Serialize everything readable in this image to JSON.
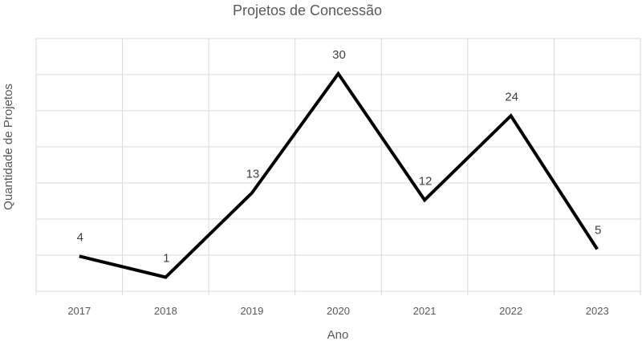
{
  "chart_data": {
    "type": "line",
    "title": "Projetos de Concessão",
    "xlabel": "Ano",
    "ylabel": "Quantidade de Projetos",
    "categories": [
      "2017",
      "2018",
      "2019",
      "2020",
      "2021",
      "2022",
      "2023"
    ],
    "series": [
      {
        "values": [
          4,
          1,
          13,
          30,
          12,
          24,
          5
        ],
        "color": "#000000"
      }
    ],
    "ylim": [
      -1,
      35
    ],
    "gridlines": {
      "horizontal": true,
      "vertical": true
    },
    "data_labels": true,
    "legend": "none"
  }
}
